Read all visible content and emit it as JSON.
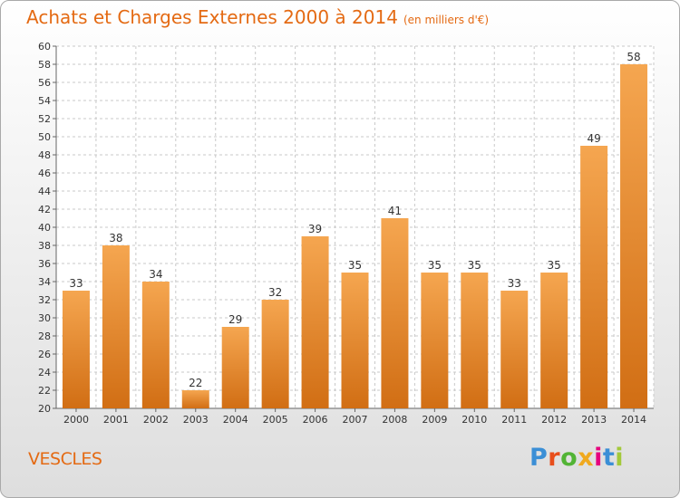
{
  "title": "Achats et Charges Externes 2000 à 2014",
  "subtitle": "(en milliers d'€)",
  "commune": "VESCLES",
  "logo": {
    "letters": [
      "P",
      "r",
      "o",
      "x",
      "i",
      "t",
      "i"
    ],
    "colors": [
      "#3b8fd6",
      "#e84e1b",
      "#52b435",
      "#f0a91e",
      "#e6007e",
      "#3b8fd6",
      "#a3c93a"
    ]
  },
  "colors": {
    "accent": "#e46a13",
    "bar_top": "#f5a650",
    "bar_bottom": "#d16e14"
  },
  "chart_data": {
    "type": "bar",
    "categories": [
      "2000",
      "2001",
      "2002",
      "2003",
      "2004",
      "2005",
      "2006",
      "2007",
      "2008",
      "2009",
      "2010",
      "2011",
      "2012",
      "2013",
      "2014"
    ],
    "values": [
      33,
      38,
      34,
      22,
      29,
      32,
      39,
      35,
      41,
      35,
      35,
      33,
      35,
      49,
      58
    ],
    "ylim": [
      20,
      60
    ],
    "ytick_step": 2,
    "grid": true,
    "data_labels": true
  }
}
